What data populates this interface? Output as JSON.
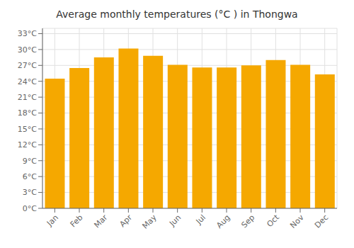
{
  "chart_data": {
    "type": "bar",
    "title": "Average monthly temperatures (°C ) in Thongwa",
    "categories": [
      "Jan",
      "Feb",
      "Mar",
      "Apr",
      "May",
      "Jun",
      "Jul",
      "Aug",
      "Sep",
      "Oct",
      "Nov",
      "Dec"
    ],
    "values": [
      24.5,
      26.5,
      28.5,
      30.2,
      28.8,
      27.1,
      26.6,
      26.6,
      27.0,
      28.0,
      27.1,
      25.3
    ],
    "color": "#F5A800",
    "ylim": [
      0,
      34
    ],
    "yticks": [
      {
        "value": 0,
        "label": "0°C"
      },
      {
        "value": 3,
        "label": "3°C"
      },
      {
        "value": 6,
        "label": "6°C"
      },
      {
        "value": 9,
        "label": "9°C"
      },
      {
        "value": 12,
        "label": "12°C"
      },
      {
        "value": 15,
        "label": "15°C"
      },
      {
        "value": 18,
        "label": "18°C"
      },
      {
        "value": 21,
        "label": "21°C"
      },
      {
        "value": 24,
        "label": "24°C"
      },
      {
        "value": 27,
        "label": "27°C"
      },
      {
        "value": 30,
        "label": "30°C"
      },
      {
        "value": 33,
        "label": "33°C"
      }
    ],
    "grid": true
  }
}
